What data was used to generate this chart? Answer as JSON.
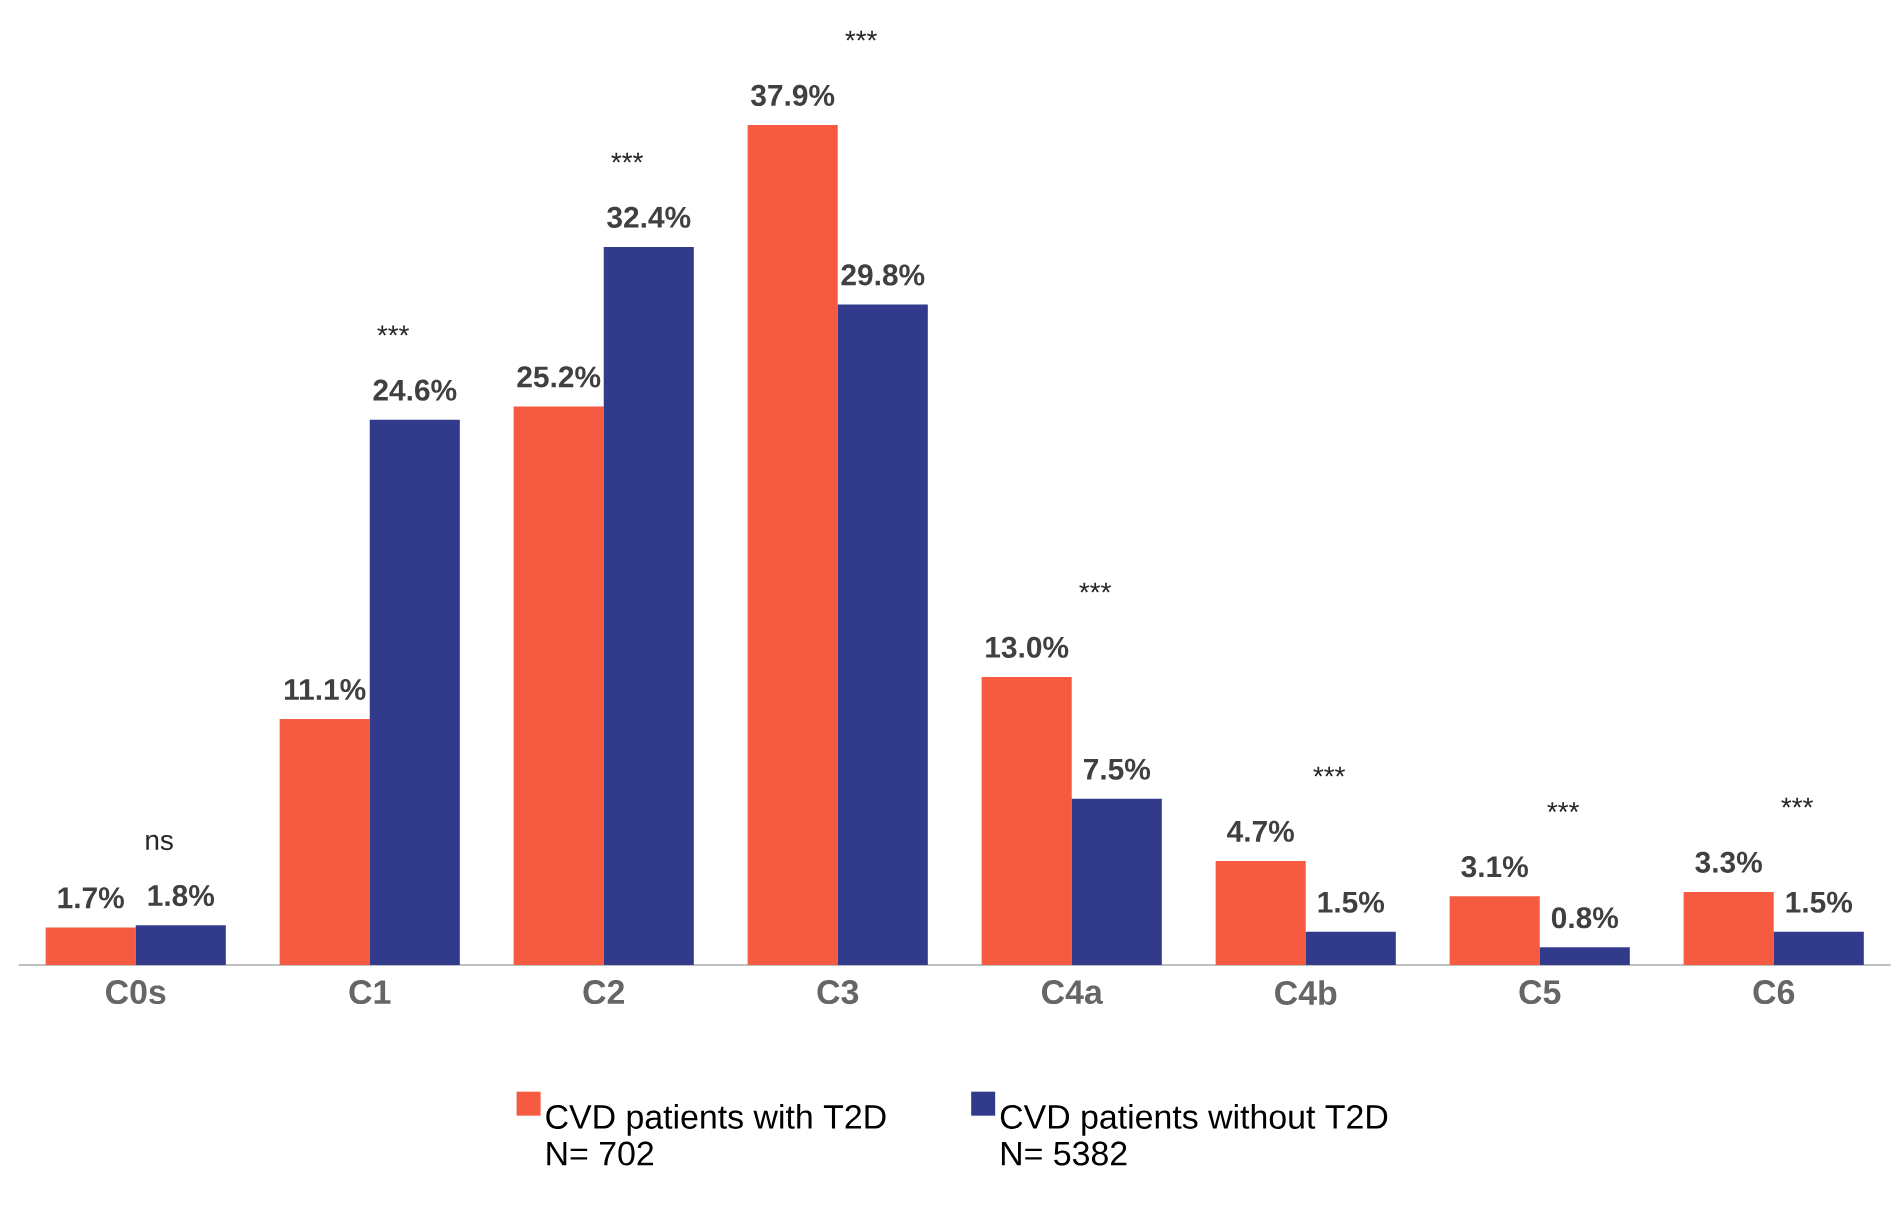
{
  "chart_data": {
    "type": "bar",
    "categories": [
      "C0s",
      "C1",
      "C2",
      "C3",
      "C4a",
      "C4b",
      "C5",
      "C6"
    ],
    "series": [
      {
        "name": "CVD patients with T2D",
        "color": "#f45b41",
        "values": [
          1.7,
          11.1,
          25.2,
          37.9,
          13.0,
          4.7,
          3.1,
          3.3
        ],
        "value_labels": [
          "1.7%",
          "11.1%",
          "25.2%",
          "37.9%",
          "13.0%",
          "4.7%",
          "3.1%",
          "3.3%"
        ]
      },
      {
        "name": "CVD patients without T2D",
        "color": "#323a8c",
        "values": [
          1.8,
          24.6,
          32.4,
          29.8,
          7.5,
          1.5,
          0.8,
          1.5
        ],
        "value_labels": [
          "1.8%",
          "24.6%",
          "32.4%",
          "29.8%",
          "7.5%",
          "1.5%",
          "0.8%",
          "1.5%"
        ]
      }
    ],
    "annotations": [
      "ns",
      "***",
      "***",
      "***",
      "***",
      "***",
      "***",
      "***",
      "N= 702",
      "N= 5382"
    ],
    "legend": "bottom"
  }
}
